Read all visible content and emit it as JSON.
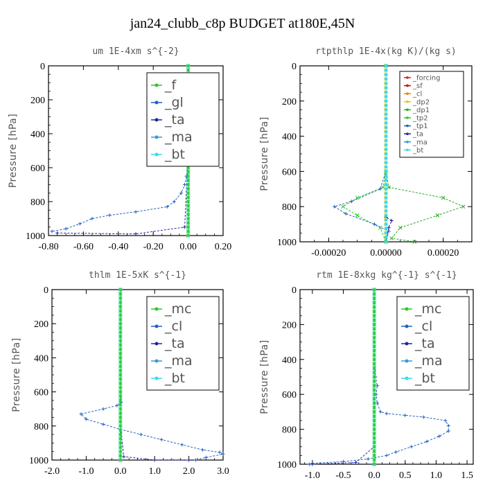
{
  "figure": {
    "title": "jan24_clubb_c8p  BUDGET at180E,45N"
  },
  "chart_data": [
    {
      "type": "line",
      "title": "um  1E-4xm s^{-2}",
      "ylabel": "Pressure [hPa]",
      "xlim": [
        -0.8,
        0.2
      ],
      "ylim": [
        1000,
        0
      ],
      "xticks": [
        "-0.80",
        "-0.60",
        "-0.40",
        "-0.20",
        "0.00",
        "0.20"
      ],
      "xtick_values": [
        -0.8,
        -0.6,
        -0.4,
        -0.2,
        0.0,
        0.2
      ],
      "yticks": [
        "0",
        "200",
        "400",
        "600",
        "800",
        "1000"
      ],
      "ytick_values": [
        0,
        200,
        400,
        600,
        800,
        1000
      ],
      "legend_position": "top-right",
      "legend_font_size": "large",
      "series": [
        {
          "name": "_f",
          "color": "#22cc22",
          "points": [
            [
              0.0,
              0
            ],
            [
              0.0,
              100
            ],
            [
              0.0,
              200
            ],
            [
              0.0,
              300
            ],
            [
              0.0,
              400
            ],
            [
              0.0,
              500
            ],
            [
              0.0,
              600
            ],
            [
              0.0,
              700
            ],
            [
              0.0,
              800
            ],
            [
              0.0,
              900
            ],
            [
              0.0,
              1000
            ]
          ]
        },
        {
          "name": "_gl",
          "color": "#1f5fbf",
          "points": [
            [
              0.0,
              0
            ],
            [
              0.0,
              100
            ],
            [
              0.0,
              200
            ],
            [
              0.0,
              300
            ],
            [
              0.0,
              400
            ],
            [
              0.0,
              500
            ],
            [
              0.0,
              600
            ],
            [
              -0.01,
              650
            ],
            [
              -0.02,
              700
            ],
            [
              -0.04,
              750
            ],
            [
              -0.08,
              800
            ],
            [
              -0.12,
              830
            ],
            [
              -0.3,
              860
            ],
            [
              -0.45,
              880
            ],
            [
              -0.55,
              900
            ],
            [
              -0.62,
              930
            ],
            [
              -0.7,
              960
            ],
            [
              -0.78,
              975
            ]
          ]
        },
        {
          "name": "_ta",
          "color": "#2222aa",
          "points": [
            [
              0.0,
              0
            ],
            [
              0.0,
              500
            ],
            [
              -0.02,
              950
            ],
            [
              -0.3,
              990
            ],
            [
              -0.75,
              985
            ]
          ]
        },
        {
          "name": "_ma",
          "color": "#3399dd",
          "points": [
            [
              0.0,
              0
            ],
            [
              0.0,
              500
            ],
            [
              0.0,
              1000
            ]
          ]
        },
        {
          "name": "_bt",
          "color": "#33ddee",
          "points": [
            [
              0.0,
              0
            ],
            [
              0.0,
              500
            ],
            [
              0.0,
              1000
            ]
          ]
        }
      ]
    },
    {
      "type": "line",
      "title": "rtpthlp  1E-4x(kg K)/(kg s)",
      "ylabel": "Pressure [hPa]",
      "xlim": [
        -0.0003,
        0.0003
      ],
      "ylim": [
        1000,
        0
      ],
      "xticks": [
        "-0.00020",
        "0.00000",
        "0.00020"
      ],
      "xtick_values": [
        -0.0002,
        0.0,
        0.0002
      ],
      "yticks": [
        "0",
        "200",
        "400",
        "600",
        "800",
        "1000"
      ],
      "ytick_values": [
        0,
        200,
        400,
        600,
        800,
        1000
      ],
      "legend_position": "top-right",
      "legend_font_size": "small",
      "series": [
        {
          "name": "_forcing",
          "color": "#cc2222",
          "points": [
            [
              0.0,
              0
            ],
            [
              0.0,
              500
            ],
            [
              0.0,
              1000
            ]
          ]
        },
        {
          "name": "_sf",
          "color": "#cc0000",
          "points": [
            [
              0.0,
              0
            ],
            [
              0.0,
              500
            ],
            [
              0.0,
              1000
            ]
          ]
        },
        {
          "name": "_cl",
          "color": "#dd8800",
          "points": [
            [
              0.0,
              0
            ],
            [
              0.0,
              500
            ],
            [
              0.0,
              1000
            ]
          ]
        },
        {
          "name": "_dp2",
          "color": "#ddcc00",
          "points": [
            [
              0.0,
              0
            ],
            [
              0.0,
              500
            ],
            [
              0.0,
              1000
            ]
          ]
        },
        {
          "name": "_dp1",
          "color": "#22aa22",
          "points": [
            [
              0.0,
              0
            ],
            [
              0.0,
              600
            ],
            [
              1e-05,
              690
            ],
            [
              0.0002,
              750
            ],
            [
              0.00027,
              800
            ],
            [
              0.00018,
              850
            ],
            [
              5e-05,
              920
            ],
            [
              2e-05,
              980
            ],
            [
              0.0001,
              1000
            ]
          ]
        },
        {
          "name": "_tp2",
          "color": "#22cc22",
          "points": [
            [
              0.0,
              0
            ],
            [
              0.0,
              600
            ],
            [
              -1e-05,
              690
            ],
            [
              -0.0001,
              750
            ],
            [
              -0.00015,
              800
            ],
            [
              -0.0001,
              850
            ],
            [
              -2e-05,
              920
            ],
            [
              0.0,
              1000
            ]
          ]
        },
        {
          "name": "_tp1",
          "color": "#1f5fbf",
          "points": [
            [
              0.0,
              0
            ],
            [
              0.0,
              600
            ],
            [
              -2e-05,
              700
            ],
            [
              -0.00012,
              770
            ],
            [
              -0.00018,
              800
            ],
            [
              -0.00014,
              840
            ],
            [
              -4e-05,
              900
            ],
            [
              1e-05,
              940
            ],
            [
              0.0,
              1000
            ]
          ]
        },
        {
          "name": "_ta",
          "color": "#2222aa",
          "points": [
            [
              0.0,
              0
            ],
            [
              0.0,
              500
            ],
            [
              0.0,
              860
            ],
            [
              2e-05,
              880
            ],
            [
              1e-05,
              920
            ],
            [
              0.0,
              1000
            ]
          ]
        },
        {
          "name": "_ma",
          "color": "#3399dd",
          "points": [
            [
              0.0,
              0
            ],
            [
              0.0,
              500
            ],
            [
              0.0,
              1000
            ]
          ]
        },
        {
          "name": "_bt",
          "color": "#33ddee",
          "points": [
            [
              0.0,
              0
            ],
            [
              0.0,
              500
            ],
            [
              0.0,
              1000
            ]
          ]
        }
      ]
    },
    {
      "type": "line",
      "title": "thlm  1E-5xK s^{-1}",
      "ylabel": "Pressure [hPa]",
      "xlim": [
        -2.0,
        3.0
      ],
      "ylim": [
        1000,
        0
      ],
      "xticks": [
        "-2.0",
        "-1.0",
        "0.0",
        "1.0",
        "2.0",
        "3.0"
      ],
      "xtick_values": [
        -2.0,
        -1.0,
        0.0,
        1.0,
        2.0,
        3.0
      ],
      "yticks": [
        "0",
        "200",
        "400",
        "600",
        "800",
        "1000"
      ],
      "ytick_values": [
        0,
        200,
        400,
        600,
        800,
        1000
      ],
      "legend_position": "top-right",
      "legend_font_size": "large",
      "series": [
        {
          "name": "_mc",
          "color": "#22cc22",
          "points": [
            [
              0.0,
              0
            ],
            [
              0.0,
              200
            ],
            [
              0.0,
              400
            ],
            [
              0.0,
              600
            ],
            [
              0.0,
              800
            ],
            [
              0.0,
              1000
            ]
          ]
        },
        {
          "name": "_cl",
          "color": "#1f5fbf",
          "points": [
            [
              0.0,
              0
            ],
            [
              0.0,
              200
            ],
            [
              0.0,
              400
            ],
            [
              0.0,
              600
            ],
            [
              0.02,
              660
            ],
            [
              -0.1,
              680
            ],
            [
              -0.5,
              700
            ],
            [
              -1.15,
              730
            ],
            [
              -1.0,
              760
            ],
            [
              -0.5,
              790
            ],
            [
              0.0,
              820
            ],
            [
              0.6,
              850
            ],
            [
              1.2,
              880
            ],
            [
              1.8,
              910
            ],
            [
              2.4,
              940
            ],
            [
              2.9,
              955
            ],
            [
              3.0,
              965
            ],
            [
              2.5,
              985
            ],
            [
              2.2,
              1000
            ]
          ]
        },
        {
          "name": "_ta",
          "color": "#2222aa",
          "points": [
            [
              0.0,
              0
            ],
            [
              0.0,
              800
            ],
            [
              0.1,
              980
            ],
            [
              1.0,
              1000
            ],
            [
              2.0,
              1000
            ]
          ]
        },
        {
          "name": "_ma",
          "color": "#3399dd",
          "points": [
            [
              0.0,
              0
            ],
            [
              0.0,
              1000
            ]
          ]
        },
        {
          "name": "_bt",
          "color": "#33ddee",
          "points": [
            [
              0.0,
              0
            ],
            [
              0.0,
              1000
            ]
          ]
        }
      ]
    },
    {
      "type": "line",
      "title": "rtm  1E-8xkg kg^{-1} s^{-1}",
      "ylabel": "Pressure [hPa]",
      "xlim": [
        -1.2,
        1.6
      ],
      "ylim": [
        1000,
        0
      ],
      "xticks": [
        "-1.0",
        "-0.5",
        "0.0",
        "0.5",
        "1.0",
        "1.5"
      ],
      "xtick_values": [
        -1.0,
        -0.5,
        0.0,
        0.5,
        1.0,
        1.5
      ],
      "yticks": [
        "0",
        "200",
        "400",
        "600",
        "800",
        "1000"
      ],
      "ytick_values": [
        0,
        200,
        400,
        600,
        800,
        1000
      ],
      "legend_position": "top-right",
      "legend_font_size": "large",
      "series": [
        {
          "name": "_mc",
          "color": "#22cc22",
          "points": [
            [
              0.0,
              0
            ],
            [
              0.0,
              200
            ],
            [
              0.0,
              400
            ],
            [
              0.0,
              600
            ],
            [
              0.0,
              800
            ],
            [
              0.0,
              1000
            ]
          ]
        },
        {
          "name": "_cl",
          "color": "#1f5fbf",
          "points": [
            [
              0.0,
              0
            ],
            [
              0.0,
              200
            ],
            [
              0.0,
              400
            ],
            [
              0.02,
              500
            ],
            [
              0.05,
              550
            ],
            [
              0.03,
              600
            ],
            [
              0.05,
              650
            ],
            [
              0.1,
              700
            ],
            [
              0.2,
              710
            ],
            [
              0.5,
              720
            ],
            [
              0.8,
              730
            ],
            [
              1.15,
              750
            ],
            [
              1.2,
              780
            ],
            [
              1.2,
              810
            ],
            [
              1.05,
              840
            ],
            [
              0.85,
              870
            ],
            [
              0.6,
              900
            ],
            [
              0.35,
              930
            ],
            [
              0.2,
              950
            ],
            [
              -0.1,
              970
            ],
            [
              -0.5,
              985
            ],
            [
              -1.0,
              995
            ],
            [
              -1.05,
              1000
            ]
          ]
        },
        {
          "name": "_ta",
          "color": "#2222aa",
          "points": [
            [
              0.0,
              0
            ],
            [
              0.0,
              900
            ],
            [
              -0.3,
              990
            ],
            [
              -1.0,
              1000
            ]
          ]
        },
        {
          "name": "_ma",
          "color": "#3399dd",
          "points": [
            [
              0.0,
              0
            ],
            [
              0.0,
              1000
            ]
          ]
        },
        {
          "name": "_bt",
          "color": "#33ddee",
          "points": [
            [
              0.0,
              0
            ],
            [
              0.0,
              1000
            ]
          ]
        }
      ]
    }
  ]
}
